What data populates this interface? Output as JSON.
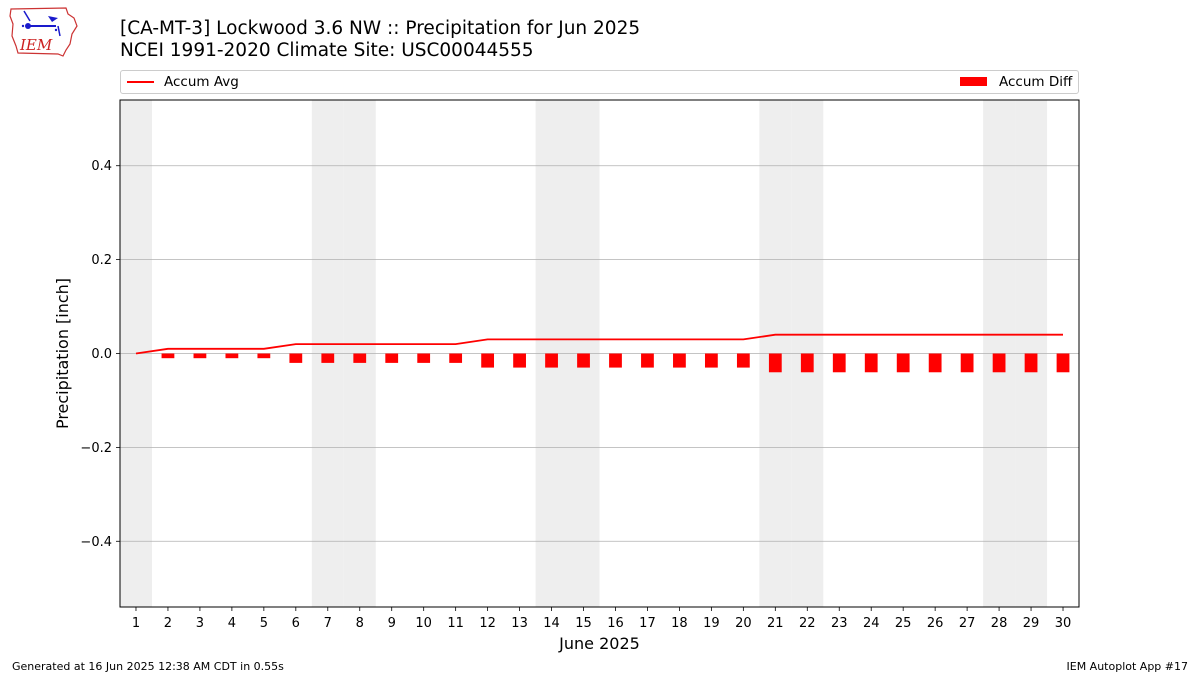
{
  "header": {
    "logo_text": "IEM",
    "title_line1": "[CA-MT-3] Lockwood 3.6 NW :: Precipitation for Jun 2025",
    "title_line2": "NCEI 1991-2020 Climate Site: USC00044555"
  },
  "legend": {
    "avg_label": "Accum Avg",
    "diff_label": "Accum Diff"
  },
  "footer": {
    "left": "Generated at 16 Jun 2025 12:38 AM CDT in 0.55s",
    "right": "IEM Autoplot App #17"
  },
  "colors": {
    "series": "#ff0000",
    "weekend_shade": "#eeeeee",
    "grid": "#b0b0b0"
  },
  "chart_data": {
    "type": "bar",
    "xlabel": "June 2025",
    "ylabel": "Precipitation [inch]",
    "xlim": [
      0.5,
      30.5
    ],
    "ylim": [
      -0.54,
      0.54
    ],
    "yticks": [
      -0.4,
      -0.2,
      0.0,
      0.2,
      0.4
    ],
    "ytick_labels": [
      "−0.4",
      "−0.2",
      "0.0",
      "0.2",
      "0.4"
    ],
    "grid": "horizontal",
    "legend_position": "top",
    "x": [
      1,
      2,
      3,
      4,
      5,
      6,
      7,
      8,
      9,
      10,
      11,
      12,
      13,
      14,
      15,
      16,
      17,
      18,
      19,
      20,
      21,
      22,
      23,
      24,
      25,
      26,
      27,
      28,
      29,
      30
    ],
    "weekend_days": [
      1,
      7,
      8,
      14,
      15,
      21,
      22,
      28,
      29
    ],
    "series": [
      {
        "name": "Accum Avg",
        "kind": "line",
        "values": [
          0.0,
          0.01,
          0.01,
          0.01,
          0.01,
          0.02,
          0.02,
          0.02,
          0.02,
          0.02,
          0.02,
          0.03,
          0.03,
          0.03,
          0.03,
          0.03,
          0.03,
          0.03,
          0.03,
          0.03,
          0.04,
          0.04,
          0.04,
          0.04,
          0.04,
          0.04,
          0.04,
          0.04,
          0.04,
          0.04
        ]
      },
      {
        "name": "Accum Diff",
        "kind": "bar",
        "values": [
          0.0,
          -0.01,
          -0.01,
          -0.01,
          -0.01,
          -0.02,
          -0.02,
          -0.02,
          -0.02,
          -0.02,
          -0.02,
          -0.03,
          -0.03,
          -0.03,
          -0.03,
          -0.03,
          -0.03,
          -0.03,
          -0.03,
          -0.03,
          -0.04,
          -0.04,
          -0.04,
          -0.04,
          -0.04,
          -0.04,
          -0.04,
          -0.04,
          -0.04,
          -0.04
        ]
      }
    ]
  }
}
